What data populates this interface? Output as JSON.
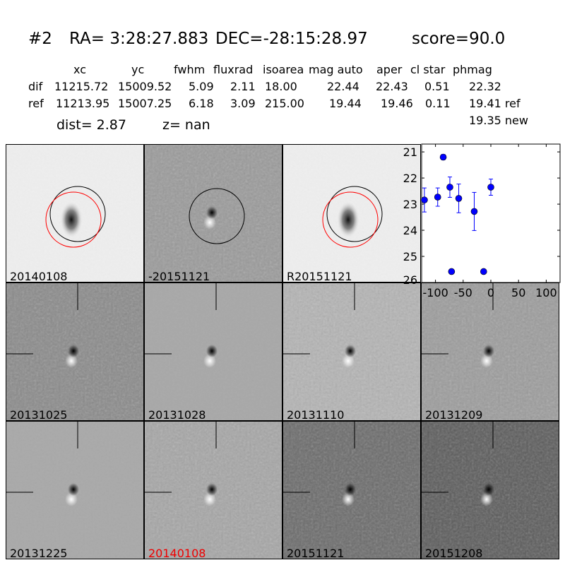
{
  "header": {
    "id": "#2",
    "ra": "RA= 3:28:27.883",
    "dec": "DEC=-28:15:28.97",
    "score": "score=90.0"
  },
  "table": {
    "columns": [
      "xc",
      "yc",
      "fwhm",
      "fluxrad",
      "isoarea",
      "mag auto",
      "aper",
      "cl star",
      "phmag"
    ],
    "rows": [
      {
        "label": "dif",
        "values": [
          "11215.72",
          "15009.52",
          "5.09",
          "2.11",
          "18.00",
          "22.44",
          "22.43",
          "0.51",
          "22.32"
        ]
      },
      {
        "label": "ref",
        "values": [
          "11213.95",
          "15007.25",
          "6.18",
          "3.09",
          "215.00",
          "19.44",
          "19.46",
          "0.11",
          "19.41 ref"
        ]
      }
    ],
    "extra_phmag": "19.35 new",
    "dist": "dist=  2.87",
    "z": "z=   nan"
  },
  "panels": [
    {
      "label": "20140108",
      "bg": "#eeeeee",
      "source": "star",
      "circles": [
        "black",
        "red"
      ]
    },
    {
      "label": "-20151121",
      "bg": "#9a9a9a",
      "source": "dipole",
      "circles": [
        "black"
      ]
    },
    {
      "label": "R20151121",
      "bg": "#eeeeee",
      "source": "star",
      "circles": [
        "black",
        "red"
      ]
    },
    {
      "label": "20131025",
      "bg": "#8a8a8a",
      "source": "dipole",
      "crosshair": true
    },
    {
      "label": "20131028",
      "bg": "#a8a8a8",
      "source": "dipole",
      "crosshair": true
    },
    {
      "label": "20131110",
      "bg": "#b4b4b4",
      "source": "dipole",
      "crosshair": true
    },
    {
      "label": "20131209",
      "bg": "#9c9c9c",
      "source": "dipole",
      "crosshair": true
    },
    {
      "label": "20131225",
      "bg": "#a9a9a9",
      "source": "dipole",
      "crosshair": true
    },
    {
      "label": "20140108",
      "bg": "#a6a6a6",
      "source": "dipole",
      "crosshair": true,
      "label_color": "#ff0000"
    },
    {
      "label": "20151121",
      "bg": "#6a6a6a",
      "source": "dipole",
      "crosshair": true
    },
    {
      "label": "20151208",
      "bg": "#5a5a5a",
      "source": "dipole",
      "crosshair": true
    }
  ],
  "chart_data": {
    "type": "scatter",
    "xlim": [
      -125,
      125
    ],
    "ylim": [
      26,
      20.7
    ],
    "y_inverted": true,
    "xticks": [
      -100,
      -50,
      0,
      50,
      100
    ],
    "yticks": [
      21,
      22,
      23,
      24,
      25,
      26
    ],
    "grid": false,
    "color": "#0000ff",
    "points": [
      {
        "x": -120,
        "y": 22.84,
        "err": 0.46
      },
      {
        "x": -96,
        "y": 22.73,
        "err": 0.35
      },
      {
        "x": -86,
        "y": 21.2,
        "err": 0.1
      },
      {
        "x": -74,
        "y": 22.35,
        "err": 0.39
      },
      {
        "x": -71,
        "y": 25.58,
        "err": 0.05
      },
      {
        "x": -58,
        "y": 22.78,
        "err": 0.55
      },
      {
        "x": -30,
        "y": 23.28,
        "err": 0.73
      },
      {
        "x": -13,
        "y": 25.58,
        "err": 0.05
      },
      {
        "x": 0,
        "y": 22.35,
        "err": 0.31
      }
    ]
  }
}
